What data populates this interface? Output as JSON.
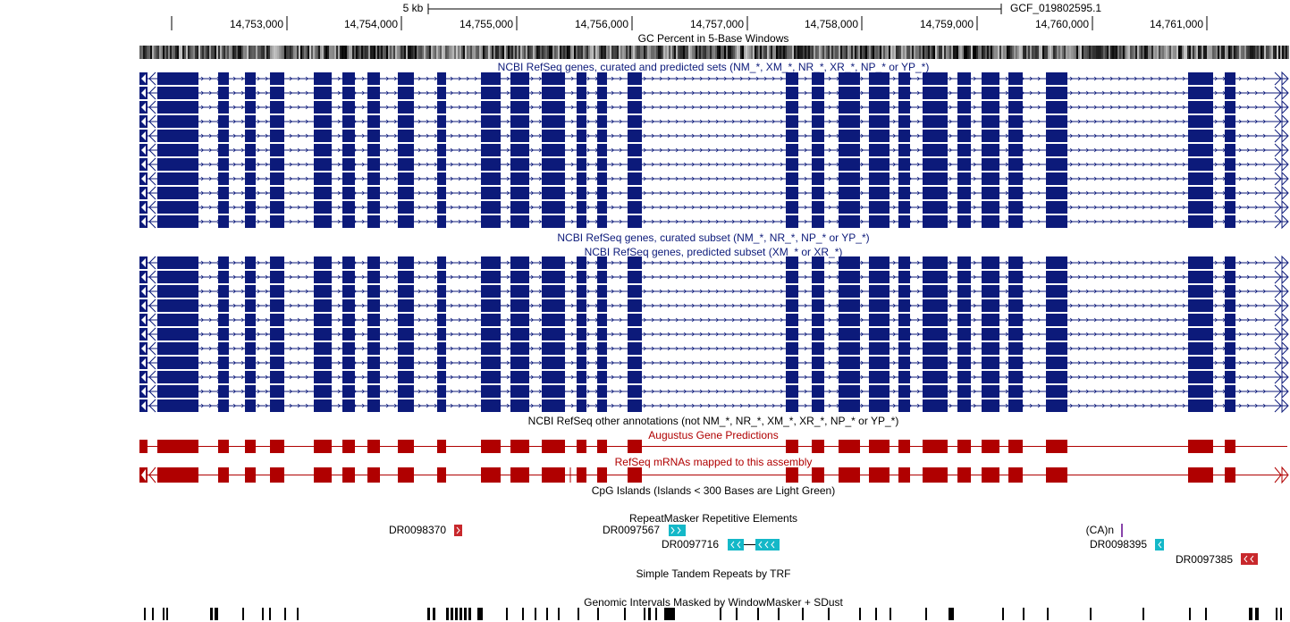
{
  "ruler": {
    "scale_label": "5 kb",
    "assembly_label": "GCF_019802595.1",
    "positions": [
      "14,753,000",
      "14,754,000",
      "14,755,000",
      "14,756,000",
      "14,757,000",
      "14,758,000",
      "14,759,000",
      "14,760,000",
      "14,761,000"
    ]
  },
  "tracks": {
    "gc_percent": "GC Percent in 5-Base Windows",
    "refseq_all": "NCBI RefSeq genes, curated and predicted sets (NM_*, XM_*, NR_*, XR_*, NP_* or YP_*)",
    "refseq_curated": "NCBI RefSeq genes, curated subset (NM_*, NR_*, NP_* or YP_*)",
    "refseq_predicted": "NCBI RefSeq genes, predicted subset (XM_* or XR_*)",
    "refseq_other": "NCBI RefSeq other annotations (not NM_*, NR_*, XM_*, XR_*, NP_* or YP_*)",
    "augustus": "Augustus Gene Predictions",
    "refseq_mrna": "RefSeq mRNAs mapped to this assembly",
    "cpg": "CpG Islands (Islands < 300 Bases are Light Green)",
    "repeatmasker": "RepeatMasker Repetitive Elements",
    "simple_repeats": "Simple Tandem Repeats by TRF",
    "windowmasker": "Genomic Intervals Masked by WindowMasker + SDust"
  },
  "repeat_elements": [
    {
      "name": "DR0098370"
    },
    {
      "name": "DR0097567"
    },
    {
      "name": "DR0097716"
    },
    {
      "name": "(CA)n"
    },
    {
      "name": "DR0098395"
    },
    {
      "name": "DR0097385"
    }
  ],
  "colors": {
    "refseq": "#0c1a7a",
    "augustus": "#b00000",
    "repeat_cyan": "#14b8c8",
    "repeat_red": "#c8282c",
    "ca_purple": "#8844aa",
    "track_title_blue": "#0c1a7a",
    "track_title_red": "#b00000"
  }
}
